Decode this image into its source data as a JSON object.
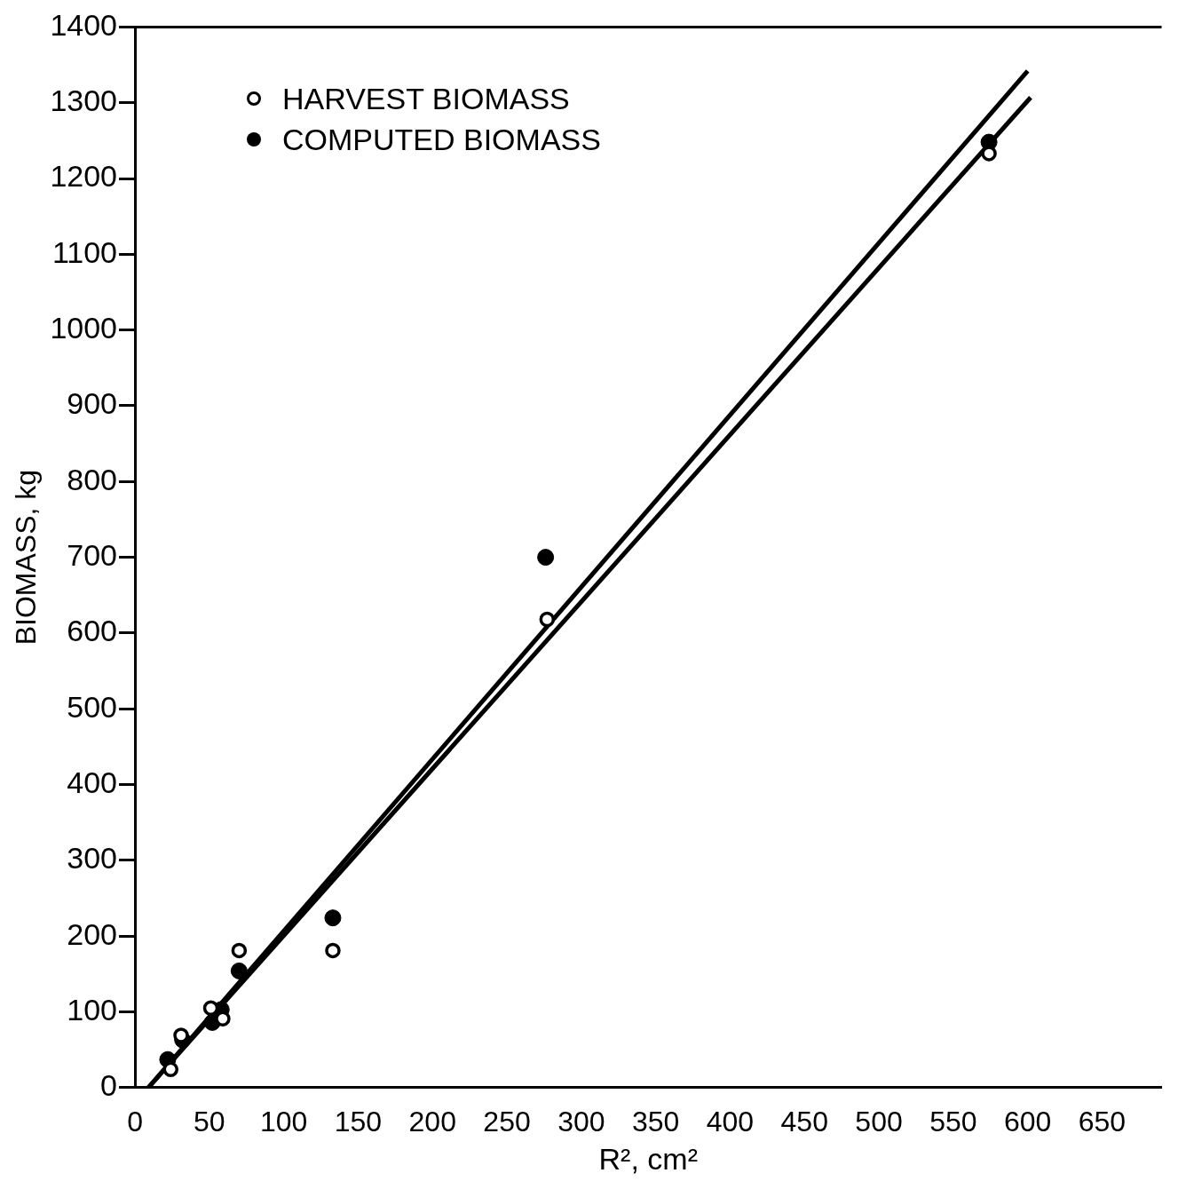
{
  "chart_data": {
    "type": "scatter",
    "xlabel": "R², cm²",
    "ylabel": "BIOMASS, kg",
    "xlim": [
      0,
      690
    ],
    "ylim": [
      0,
      1400
    ],
    "xticks": [
      0,
      50,
      100,
      150,
      200,
      250,
      300,
      350,
      400,
      450,
      500,
      550,
      600,
      650
    ],
    "yticks": [
      0,
      100,
      200,
      300,
      400,
      500,
      600,
      700,
      800,
      900,
      1000,
      1100,
      1200,
      1300,
      1400
    ],
    "grid": false,
    "legend": "top left",
    "series": [
      {
        "name": "HARVEST BIOMASS",
        "color": "#000000",
        "marker": "circle",
        "x": [
          24,
          31,
          51,
          59,
          70,
          133,
          277,
          574
        ],
        "values": [
          24,
          69,
          105,
          91,
          181,
          181,
          618,
          1233
        ]
      },
      {
        "name": "COMPUTED BIOMASS",
        "color": "#000000",
        "marker": "circle",
        "x": [
          22,
          32,
          52,
          58,
          70,
          133,
          276,
          574
        ],
        "values": [
          37,
          63,
          86,
          103,
          154,
          224,
          700,
          1248
        ]
      },
      {
        "type": "line",
        "color": "#000000",
        "marker": "none",
        "x": [
          9,
          600
        ],
        "values": [
          0,
          1342
        ]
      },
      {
        "type": "line",
        "color": "#000000",
        "marker": "none",
        "x": [
          9,
          602
        ],
        "values": [
          0,
          1307
        ]
      }
    ]
  }
}
